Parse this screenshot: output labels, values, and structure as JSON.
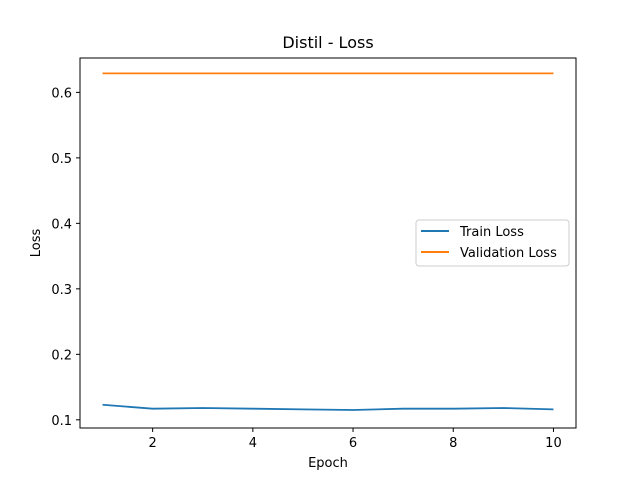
{
  "chart_data": {
    "type": "line",
    "title": "Distil - Loss",
    "xlabel": "Epoch",
    "ylabel": "Loss",
    "x": [
      1,
      2,
      3,
      4,
      5,
      6,
      7,
      8,
      9,
      10
    ],
    "xlim": [
      0.55,
      10.45
    ],
    "ylim": [
      0.0875,
      0.6525
    ],
    "xticks": [
      2,
      4,
      6,
      8,
      10
    ],
    "xtick_labels": [
      "2",
      "4",
      "6",
      "8",
      "10"
    ],
    "yticks": [
      0.1,
      0.2,
      0.3,
      0.4,
      0.5,
      0.6
    ],
    "ytick_labels": [
      "0.1",
      "0.2",
      "0.3",
      "0.4",
      "0.5",
      "0.6"
    ],
    "grid": false,
    "legend_position": "center-right",
    "series": [
      {
        "name": "Train Loss",
        "color": "#1f77b4",
        "values": [
          0.123,
          0.117,
          0.118,
          0.117,
          0.116,
          0.115,
          0.117,
          0.117,
          0.118,
          0.116
        ]
      },
      {
        "name": "Validation Loss",
        "color": "#ff7f0e",
        "values": [
          0.629,
          0.629,
          0.629,
          0.629,
          0.629,
          0.629,
          0.629,
          0.629,
          0.629,
          0.629
        ]
      }
    ]
  }
}
